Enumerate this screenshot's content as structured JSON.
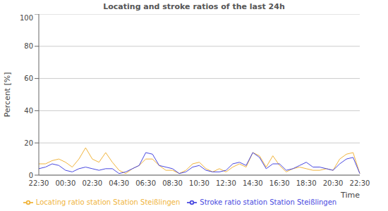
{
  "chart_data": {
    "type": "line",
    "title": "Locating and stroke ratios of the last 24h",
    "x_label": "Time",
    "y_label": "Percent   [%]",
    "categories": [
      "22:30",
      null,
      null,
      null,
      "00:30",
      null,
      null,
      null,
      "02:30",
      null,
      null,
      null,
      "04:30",
      null,
      null,
      null,
      "06:30",
      null,
      null,
      null,
      "08:30",
      null,
      null,
      null,
      "10:30",
      null,
      null,
      null,
      "12:30",
      null,
      null,
      null,
      "14:30",
      null,
      null,
      null,
      "16:30",
      null,
      null,
      null,
      "18:30",
      null,
      null,
      null,
      "20:30",
      null,
      null,
      null,
      "22:30"
    ],
    "series": [
      {
        "name": "Locating ratio station Station Steißlingen",
        "color": "#f0b43c",
        "values": [
          7,
          7,
          9,
          10,
          8,
          5,
          10,
          17,
          10,
          8,
          14,
          8,
          3,
          1,
          4,
          6,
          10,
          10,
          6,
          3,
          3,
          1,
          3,
          7,
          8,
          4,
          2,
          4,
          2,
          5,
          7,
          5,
          14,
          12,
          5,
          12,
          6,
          2,
          4,
          5,
          4,
          3,
          3,
          4,
          3,
          10,
          13,
          14,
          1
        ]
      },
      {
        "name": "Stroke ratio station Station Steißlingen",
        "color": "#4848e0",
        "values": [
          4,
          5,
          7,
          6,
          3,
          2,
          4,
          5,
          4,
          3,
          4,
          4,
          1,
          2,
          4,
          6,
          14,
          13,
          6,
          5,
          4,
          1,
          2,
          5,
          6,
          3,
          2,
          2,
          3,
          7,
          8,
          6,
          14,
          11,
          4,
          7,
          7,
          3,
          4,
          6,
          8,
          5,
          5,
          4,
          3,
          7,
          10,
          11,
          1
        ]
      }
    ],
    "ylim": [
      0,
      100
    ],
    "yticks": [
      0,
      20,
      40,
      60,
      80,
      100
    ],
    "grid": true,
    "legend": "bottom"
  }
}
